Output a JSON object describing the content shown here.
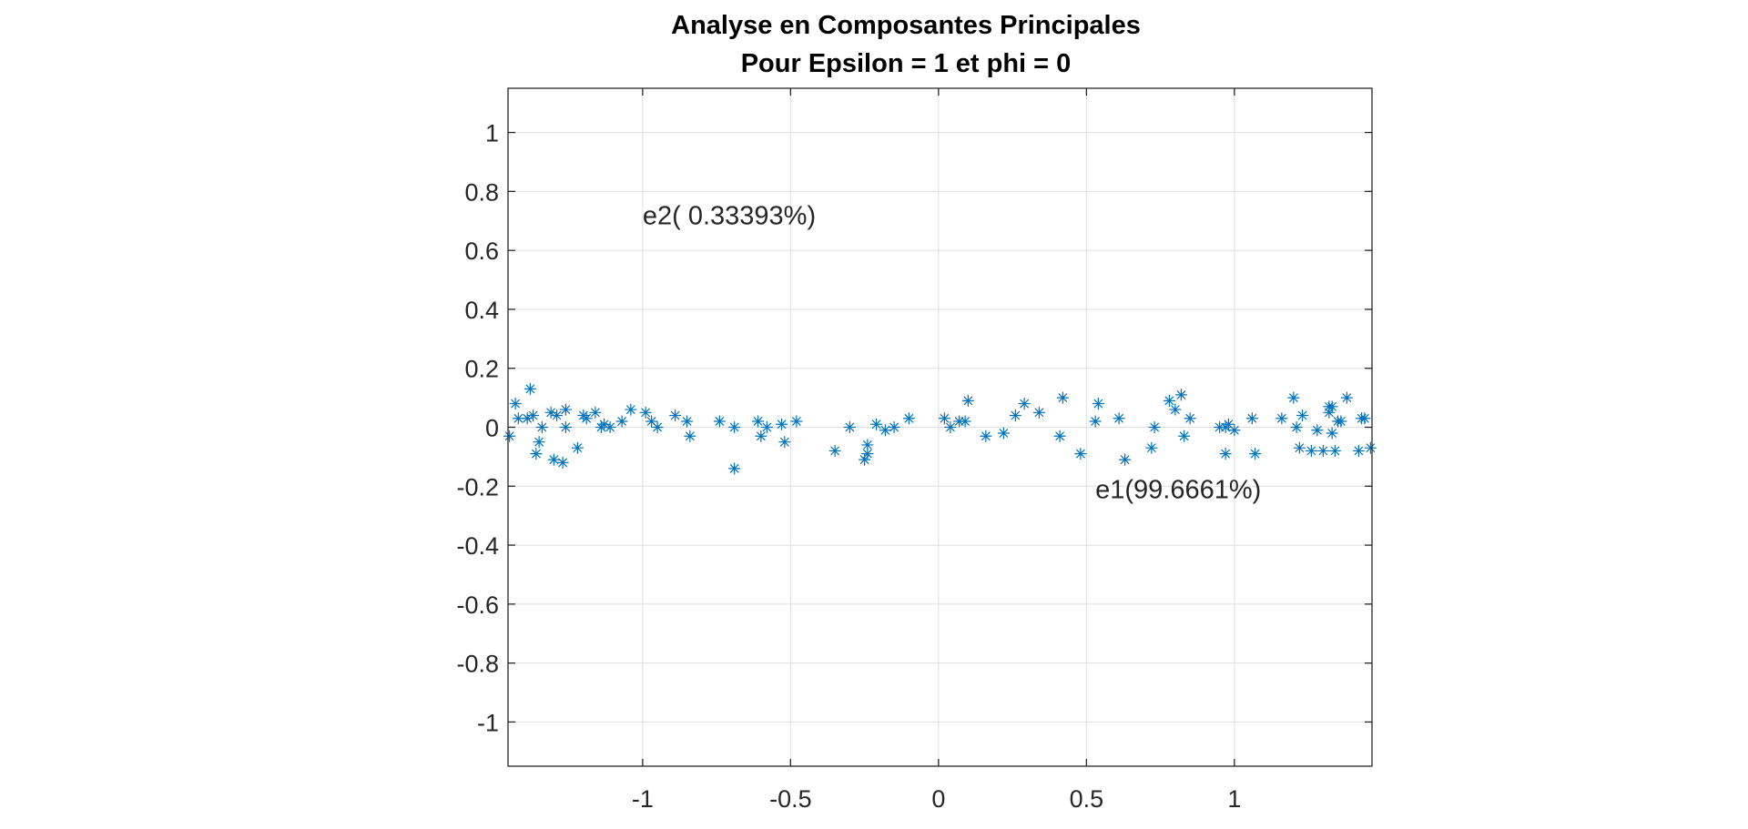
{
  "chart_data": {
    "type": "scatter",
    "title": [
      "Analyse en Composantes Principales",
      "Pour Epsilon = 1 et phi = 0"
    ],
    "xlabel": "",
    "ylabel": "",
    "xlim": [
      -1.455,
      1.465
    ],
    "ylim": [
      -1.15,
      1.15
    ],
    "xticks": [
      -1,
      -0.5,
      0,
      0.5,
      1
    ],
    "xtick_labels": [
      "-1",
      "-0.5",
      "0",
      "0.5",
      "1"
    ],
    "yticks": [
      1,
      0.8,
      0.6,
      0.4,
      0.2,
      0,
      -0.2,
      -0.4,
      -0.6,
      -0.8,
      -1
    ],
    "ytick_labels": [
      "1",
      "0.8",
      "0.6",
      "0.4",
      "0.2",
      "0",
      "-0.2",
      "-0.4",
      "-0.6",
      "-0.8",
      "-1"
    ],
    "grid": true,
    "marker": "asterisk",
    "marker_color": "#0072BD",
    "annotations": [
      {
        "text": "e2( 0.33393%)",
        "x": -1.0,
        "y": 0.72
      },
      {
        "text": "e1(99.6661%)",
        "x": 0.53,
        "y": -0.21
      }
    ],
    "series": [
      {
        "points": [
          [
            -1.45,
            -0.03
          ],
          [
            -1.43,
            0.08
          ],
          [
            -1.42,
            0.03
          ],
          [
            -1.39,
            0.03
          ],
          [
            -1.38,
            0.13
          ],
          [
            -1.37,
            0.04
          ],
          [
            -1.36,
            -0.09
          ],
          [
            -1.35,
            -0.05
          ],
          [
            -1.34,
            0.0
          ],
          [
            -1.31,
            0.05
          ],
          [
            -1.3,
            -0.11
          ],
          [
            -1.29,
            0.04
          ],
          [
            -1.27,
            -0.12
          ],
          [
            -1.26,
            0.06
          ],
          [
            -1.26,
            0.0
          ],
          [
            -1.22,
            -0.07
          ],
          [
            -1.2,
            0.04
          ],
          [
            -1.19,
            0.03
          ],
          [
            -1.16,
            0.05
          ],
          [
            -1.14,
            0.0
          ],
          [
            -1.13,
            0.01
          ],
          [
            -1.11,
            0.0
          ],
          [
            -1.07,
            0.02
          ],
          [
            -1.04,
            0.06
          ],
          [
            -0.99,
            0.05
          ],
          [
            -0.97,
            0.02
          ],
          [
            -0.95,
            0.0
          ],
          [
            -0.89,
            0.04
          ],
          [
            -0.85,
            0.02
          ],
          [
            -0.84,
            -0.03
          ],
          [
            -0.74,
            0.02
          ],
          [
            -0.69,
            0.0
          ],
          [
            -0.69,
            -0.14
          ],
          [
            -0.61,
            0.02
          ],
          [
            -0.6,
            -0.03
          ],
          [
            -0.58,
            0.0
          ],
          [
            -0.53,
            0.01
          ],
          [
            -0.52,
            -0.05
          ],
          [
            -0.48,
            0.02
          ],
          [
            -0.35,
            -0.08
          ],
          [
            -0.3,
            0.0
          ],
          [
            -0.25,
            -0.11
          ],
          [
            -0.24,
            -0.06
          ],
          [
            -0.24,
            -0.09
          ],
          [
            -0.21,
            0.01
          ],
          [
            -0.18,
            -0.01
          ],
          [
            -0.15,
            0.0
          ],
          [
            -0.1,
            0.03
          ],
          [
            0.02,
            0.03
          ],
          [
            0.04,
            0.0
          ],
          [
            0.07,
            0.02
          ],
          [
            0.09,
            0.02
          ],
          [
            0.1,
            0.09
          ],
          [
            0.16,
            -0.03
          ],
          [
            0.22,
            -0.02
          ],
          [
            0.26,
            0.04
          ],
          [
            0.29,
            0.08
          ],
          [
            0.34,
            0.05
          ],
          [
            0.41,
            -0.03
          ],
          [
            0.42,
            0.1
          ],
          [
            0.48,
            -0.09
          ],
          [
            0.53,
            0.02
          ],
          [
            0.54,
            0.08
          ],
          [
            0.61,
            0.03
          ],
          [
            0.63,
            -0.11
          ],
          [
            0.72,
            -0.07
          ],
          [
            0.73,
            0.0
          ],
          [
            0.78,
            0.09
          ],
          [
            0.8,
            0.06
          ],
          [
            0.82,
            0.11
          ],
          [
            0.83,
            -0.03
          ],
          [
            0.85,
            0.03
          ],
          [
            0.95,
            0.0
          ],
          [
            0.97,
            -0.09
          ],
          [
            0.97,
            0.0
          ],
          [
            0.98,
            0.01
          ],
          [
            1.0,
            -0.01
          ],
          [
            1.06,
            0.03
          ],
          [
            1.07,
            -0.09
          ],
          [
            1.16,
            0.03
          ],
          [
            1.2,
            0.1
          ],
          [
            1.21,
            0.0
          ],
          [
            1.22,
            -0.07
          ],
          [
            1.23,
            0.04
          ],
          [
            1.26,
            -0.08
          ],
          [
            1.28,
            -0.01
          ],
          [
            1.3,
            -0.08
          ],
          [
            1.32,
            0.05
          ],
          [
            1.32,
            0.07
          ],
          [
            1.33,
            0.07
          ],
          [
            1.33,
            -0.02
          ],
          [
            1.34,
            -0.08
          ],
          [
            1.35,
            0.02
          ],
          [
            1.36,
            0.02
          ],
          [
            1.38,
            0.1
          ],
          [
            1.42,
            -0.08
          ],
          [
            1.43,
            0.03
          ],
          [
            1.44,
            0.03
          ],
          [
            1.46,
            -0.07
          ]
        ]
      }
    ]
  }
}
